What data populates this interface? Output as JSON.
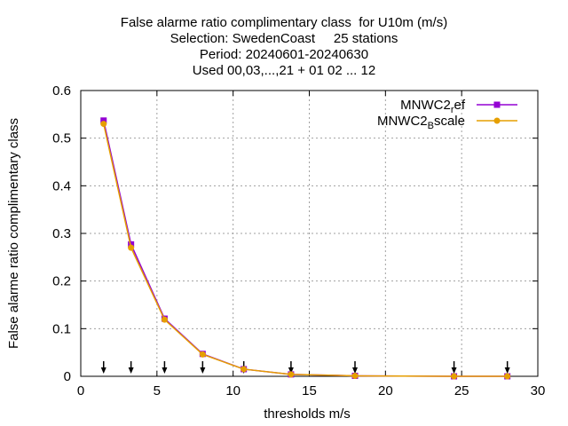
{
  "chart_data": {
    "type": "line",
    "title_lines": [
      "False alarme ratio complimentary class  for U10m (m/s)",
      "Selection: SwedenCoast     25 stations",
      "Period: 20240601-20240630",
      "Used 00,03,...,21 + 01 02 ... 12"
    ],
    "xlabel": "thresholds m/s",
    "ylabel": "False alarme ratio complimentary class",
    "xlim": [
      0,
      30
    ],
    "ylim": [
      0,
      0.6
    ],
    "xticks": [
      "0",
      "5",
      "10",
      "15",
      "20",
      "25",
      "30"
    ],
    "yticks": [
      "0",
      "0.1",
      "0.2",
      "0.3",
      "0.4",
      "0.5",
      "0.6"
    ],
    "grid": true,
    "legend_position": "top-right",
    "series": [
      {
        "name_main": "MNWC2",
        "name_sub": "r",
        "name_rest": "ef",
        "color": "#9400d3",
        "marker": "square",
        "x": [
          1.5,
          3.3,
          5.5,
          8.0,
          10.7,
          13.8,
          18.0,
          24.5,
          28.0
        ],
        "y": [
          0.537,
          0.277,
          0.121,
          0.047,
          0.015,
          0.004,
          0.001,
          0.0,
          0.0
        ]
      },
      {
        "name_main": "MNWC2",
        "name_sub": "B",
        "name_rest": "scale",
        "color": "#e69f00",
        "marker": "circle",
        "x": [
          1.5,
          3.3,
          5.5,
          8.0,
          10.7,
          13.8,
          18.0,
          24.5,
          28.0
        ],
        "y": [
          0.53,
          0.27,
          0.119,
          0.046,
          0.015,
          0.004,
          0.001,
          0.0,
          0.0
        ]
      }
    ],
    "threshold_arrows_x": [
      1.5,
      3.3,
      5.5,
      8.0,
      10.7,
      13.8,
      18.0,
      24.5,
      28.0
    ]
  }
}
